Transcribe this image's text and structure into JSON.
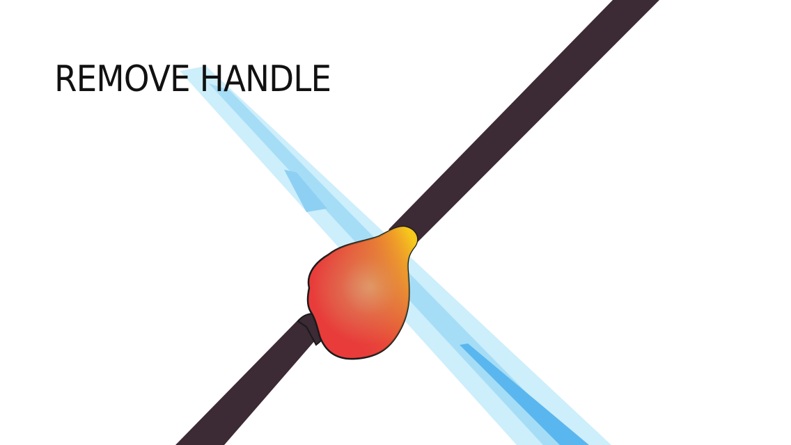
{
  "instruction": {
    "text": "REMOVE HANDLE"
  },
  "colors": {
    "handle": "#3c2a35",
    "blade_light": "#cdeefb",
    "blade_mid": "#a5ddf6",
    "blade_dark": "#5ab6ee",
    "blob_red": "#ea3a3a",
    "blob_yellow": "#f6c81c",
    "outline": "#1a1a1a"
  },
  "objects": {
    "handle": "handle-stick",
    "blade": "knife-blade",
    "joint": "glue-blob"
  }
}
